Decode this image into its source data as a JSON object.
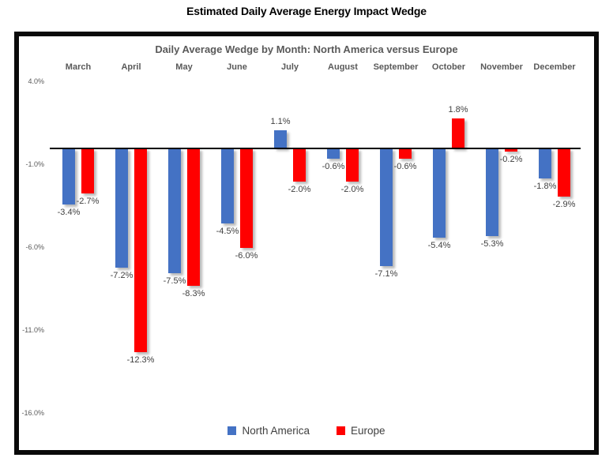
{
  "page_title": "Estimated Daily Average Energy Impact Wedge",
  "chart_data": {
    "type": "bar",
    "outer_title": "Estimated Daily Average Energy Impact Wedge",
    "title": "Daily Average Wedge by Month: North America versus Europe",
    "categories": [
      "March",
      "April",
      "May",
      "June",
      "July",
      "August",
      "September",
      "October",
      "November",
      "December"
    ],
    "series": [
      {
        "name": "North America",
        "color": "#4472C4",
        "values": [
          -3.4,
          -7.2,
          -7.5,
          -4.5,
          1.1,
          -0.6,
          -7.1,
          -5.4,
          -5.3,
          -1.8
        ],
        "labels": [
          "-3.4%",
          "-7.2%",
          "-7.5%",
          "-4.5%",
          "1.1%",
          "-0.6%",
          "-7.1%",
          "-5.4%",
          "-5.3%",
          "-1.8%"
        ]
      },
      {
        "name": "Europe",
        "color": "#FF0000",
        "values": [
          -2.7,
          -12.3,
          -8.3,
          -6.0,
          -2.0,
          -2.0,
          -0.6,
          1.8,
          -0.2,
          -2.9
        ],
        "labels": [
          "-2.7%",
          "-12.3%",
          "-8.3%",
          "-6.0%",
          "-2.0%",
          "-2.0%",
          "-0.6%",
          "1.8%",
          "-0.2%",
          "-2.9%"
        ]
      }
    ],
    "y_axis": {
      "ticks": [
        "4.0%",
        "-1.0%",
        "-6.0%",
        "-11.0%",
        "-16.0%"
      ],
      "tick_values": [
        4,
        -1,
        -6,
        -11,
        -16
      ],
      "max": 4,
      "min": -16
    },
    "legend_position": "bottom",
    "grid": false,
    "colors": {
      "axis_line": "#000000",
      "data_label_text": "#404040",
      "axis_text": "#595959",
      "title_text": "#595959",
      "border": "#0a0a0a"
    }
  }
}
